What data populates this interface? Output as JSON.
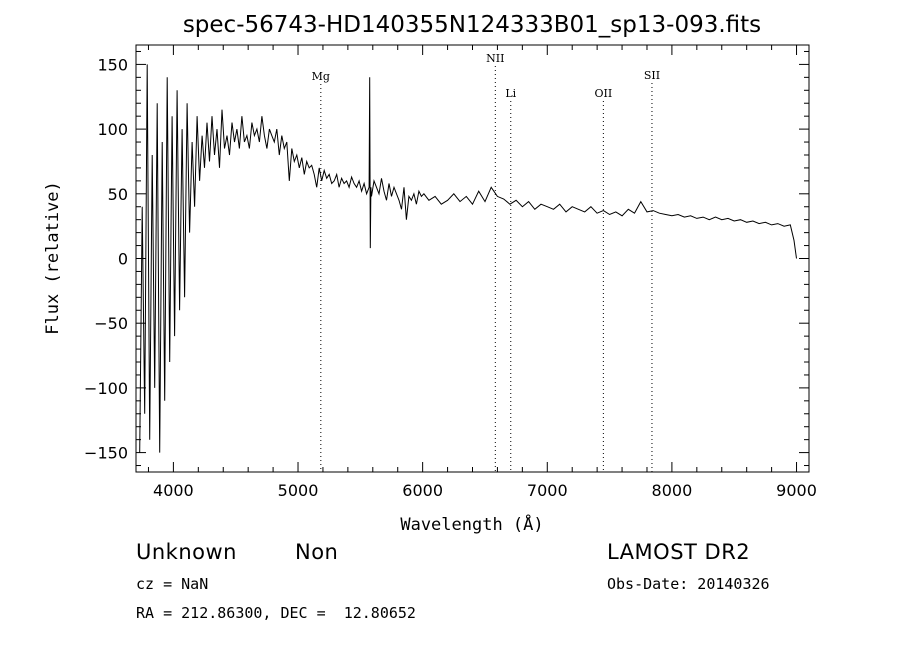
{
  "chart_data": {
    "type": "line",
    "title": "spec-56743-HD140355N124333B01_sp13-093.fits",
    "xlabel": "Wavelength (Å)",
    "ylabel": "Flux (relative)",
    "xlim": [
      3700,
      9100
    ],
    "ylim": [
      -165,
      165
    ],
    "xticks": [
      4000,
      5000,
      6000,
      7000,
      8000,
      9000
    ],
    "yticks": [
      -150,
      -100,
      -50,
      0,
      50,
      100,
      150
    ],
    "grid": false,
    "line_color": "#000000",
    "series": [
      {
        "x": [
          3730,
          3750,
          3770,
          3790,
          3810,
          3830,
          3850,
          3870,
          3890,
          3910,
          3930,
          3950,
          3970,
          3990,
          4010,
          4030,
          4050,
          4070,
          4090,
          4110,
          4130,
          4150,
          4170,
          4190,
          4210,
          4230,
          4250,
          4270,
          4290,
          4310,
          4330,
          4350,
          4370,
          4390,
          4410,
          4430,
          4450,
          4470,
          4490,
          4510,
          4530,
          4550,
          4570,
          4590,
          4610,
          4630,
          4650,
          4670,
          4690,
          4710,
          4730,
          4750,
          4770,
          4790,
          4810,
          4830,
          4850,
          4870,
          4890,
          4910,
          4930,
          4950,
          4970,
          4990,
          5010,
          5030,
          5050,
          5070,
          5090,
          5110,
          5130,
          5150,
          5170,
          5190,
          5210,
          5230,
          5250,
          5270,
          5290,
          5310,
          5330,
          5350,
          5370,
          5390,
          5410,
          5430,
          5450,
          5470,
          5490,
          5510,
          5530,
          5550,
          5570,
          5575,
          5580,
          5585,
          5590,
          5610,
          5630,
          5650,
          5670,
          5690,
          5710,
          5730,
          5750,
          5770,
          5790,
          5810,
          5830,
          5850,
          5870,
          5890,
          5910,
          5930,
          5950,
          5970,
          5990,
          6010,
          6050,
          6100,
          6150,
          6200,
          6250,
          6300,
          6350,
          6400,
          6450,
          6500,
          6550,
          6600,
          6650,
          6700,
          6750,
          6800,
          6850,
          6900,
          6950,
          7000,
          7050,
          7100,
          7150,
          7200,
          7250,
          7300,
          7350,
          7400,
          7450,
          7500,
          7550,
          7600,
          7650,
          7700,
          7750,
          7800,
          7850,
          7900,
          7950,
          8000,
          8050,
          8100,
          8150,
          8200,
          8250,
          8300,
          8350,
          8400,
          8450,
          8500,
          8550,
          8600,
          8650,
          8700,
          8750,
          8800,
          8850,
          8900,
          8950,
          8980,
          9000
        ],
        "y": [
          -150,
          40,
          -120,
          150,
          -140,
          80,
          -100,
          120,
          -150,
          90,
          -110,
          140,
          -80,
          110,
          -60,
          130,
          -40,
          100,
          -30,
          120,
          20,
          90,
          40,
          110,
          60,
          95,
          70,
          105,
          75,
          110,
          80,
          100,
          70,
          115,
          85,
          95,
          80,
          105,
          90,
          100,
          85,
          110,
          90,
          95,
          85,
          105,
          95,
          100,
          90,
          110,
          95,
          85,
          100,
          95,
          90,
          100,
          80,
          95,
          85,
          90,
          60,
          85,
          75,
          80,
          70,
          78,
          65,
          75,
          70,
          72,
          65,
          55,
          70,
          60,
          68,
          62,
          65,
          58,
          60,
          65,
          55,
          62,
          58,
          60,
          55,
          63,
          58,
          55,
          60,
          52,
          58,
          50,
          55,
          140,
          8,
          55,
          48,
          60,
          55,
          50,
          62,
          52,
          45,
          58,
          48,
          55,
          50,
          45,
          38,
          55,
          30,
          48,
          45,
          50,
          42,
          52,
          48,
          50,
          45,
          48,
          42,
          45,
          50,
          44,
          48,
          42,
          52,
          44,
          55,
          48,
          46,
          42,
          45,
          40,
          44,
          38,
          42,
          40,
          38,
          42,
          36,
          40,
          38,
          36,
          40,
          35,
          37,
          34,
          36,
          33,
          38,
          35,
          44,
          36,
          37,
          35,
          34,
          33,
          34,
          32,
          33,
          31,
          32,
          30,
          32,
          30,
          31,
          29,
          30,
          28,
          29,
          27,
          28,
          26,
          27,
          25,
          26,
          14,
          0
        ]
      }
    ],
    "lines": [
      {
        "label": "Mg",
        "x": 5183
      },
      {
        "label": "NII",
        "x": 6583
      },
      {
        "label": "Li",
        "x": 6707
      },
      {
        "label": "OII",
        "x": 7450
      },
      {
        "label": "SII",
        "x": 7840
      }
    ]
  },
  "footer": {
    "class": "Unknown",
    "subclass": "Non",
    "survey": "LAMOST DR2",
    "cz": "cz = NaN",
    "obs_date": "Obs-Date: 20140326",
    "coords": "RA = 212.86300, DEC =  12.80652"
  }
}
